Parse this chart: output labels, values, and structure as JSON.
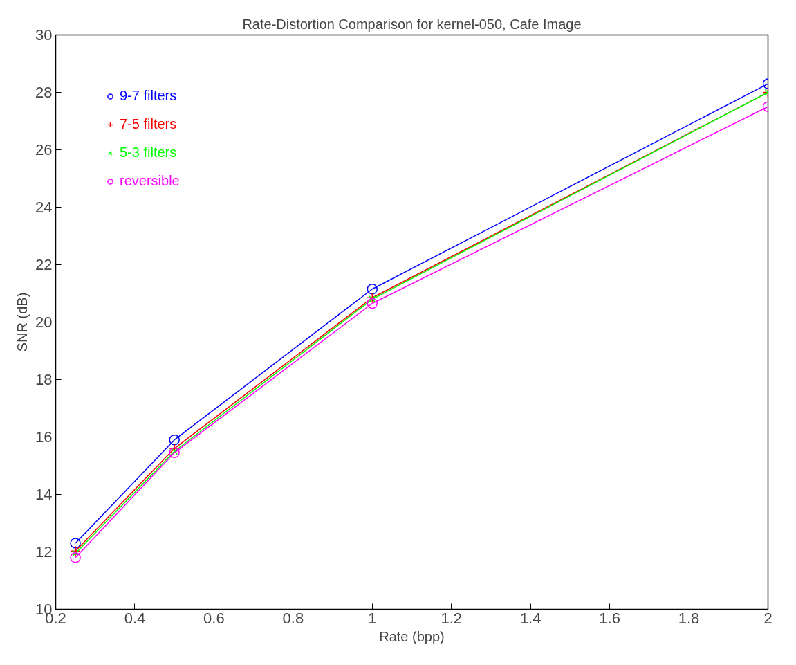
{
  "chart_data": {
    "type": "line",
    "title": "Rate-Distortion Comparison for kernel-050, Cafe Image",
    "xlabel": "Rate (bpp)",
    "ylabel": "SNR (dB)",
    "x": [
      0.25,
      0.5,
      1,
      2
    ],
    "series": [
      {
        "name": "9-7 filters",
        "color": "#0000ff",
        "marker": "circle",
        "values": [
          12.3,
          15.9,
          21.15,
          28.3
        ]
      },
      {
        "name": "7-5 filters",
        "color": "#ff0000",
        "marker": "cross",
        "values": [
          12.03,
          15.6,
          20.85,
          28.0
        ]
      },
      {
        "name": "5-3 filters",
        "color": "#00ff00",
        "marker": "x",
        "values": [
          11.95,
          15.5,
          20.8,
          28.0
        ]
      },
      {
        "name": "reversible",
        "color": "#ff00ff",
        "marker": "circle",
        "values": [
          11.8,
          15.45,
          20.65,
          27.5
        ]
      }
    ],
    "xlim": [
      0.2,
      2
    ],
    "ylim": [
      10,
      30
    ],
    "xticks": [
      0.2,
      0.4,
      0.6,
      0.8,
      1,
      1.2,
      1.4,
      1.6,
      1.8,
      2
    ],
    "yticks": [
      10,
      12,
      14,
      16,
      18,
      20,
      22,
      24,
      26,
      28,
      30
    ],
    "grid": false,
    "legend": "top left",
    "line_style": "solid"
  }
}
